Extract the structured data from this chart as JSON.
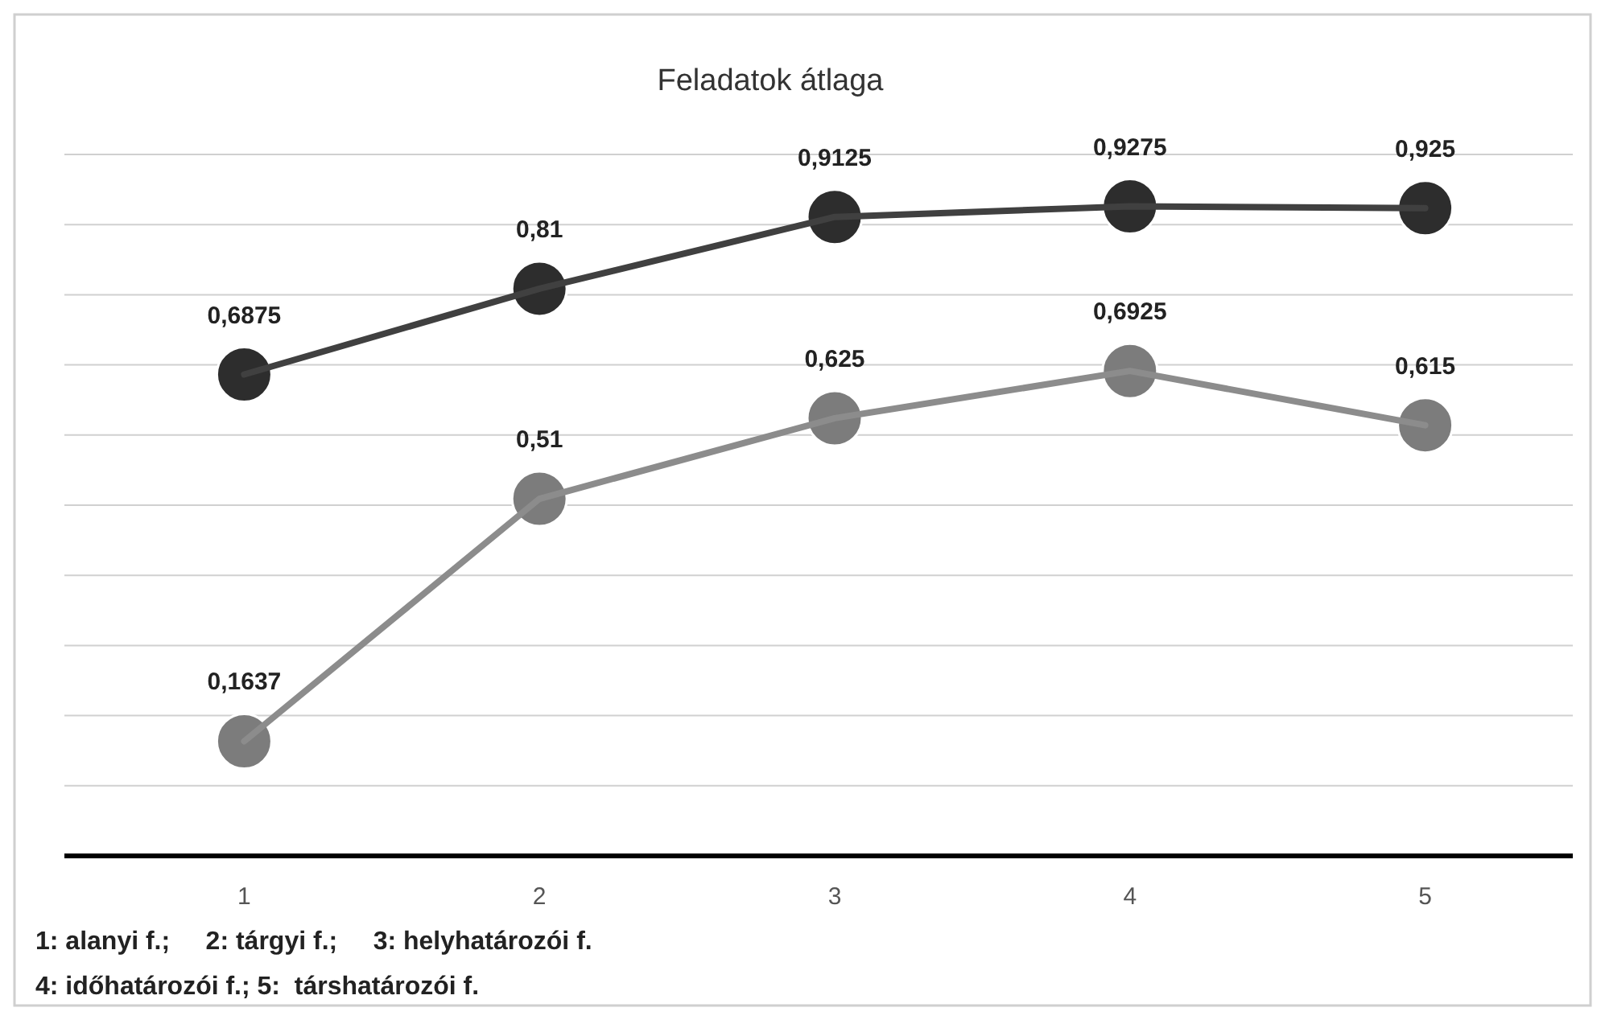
{
  "chart_data": {
    "type": "line",
    "title": "Feladatok átlaga",
    "categories": [
      "1",
      "2",
      "3",
      "4",
      "5"
    ],
    "series": [
      {
        "color": "#404040",
        "values": [
          0.6875,
          0.81,
          0.9125,
          0.9275,
          0.925
        ],
        "value_labels": [
          "0,6875",
          "0,81",
          "0,9125",
          "0,9275",
          "0,925"
        ]
      },
      {
        "color": "#8c8c8c",
        "values": [
          0.1637,
          0.51,
          0.625,
          0.6925,
          0.615
        ],
        "value_labels": [
          "0,1637",
          "0,51",
          "0,625",
          "0,6925",
          "0,615"
        ]
      }
    ],
    "grid": true,
    "tick_labels": "x",
    "marker": "circle",
    "line_style": "solid",
    "annotations": [
      "1: alanyi f.;     2: tárgyi f.;     3: helyhatározói f.",
      "4: időhatározói f.; 5:  társhatározói f."
    ]
  }
}
